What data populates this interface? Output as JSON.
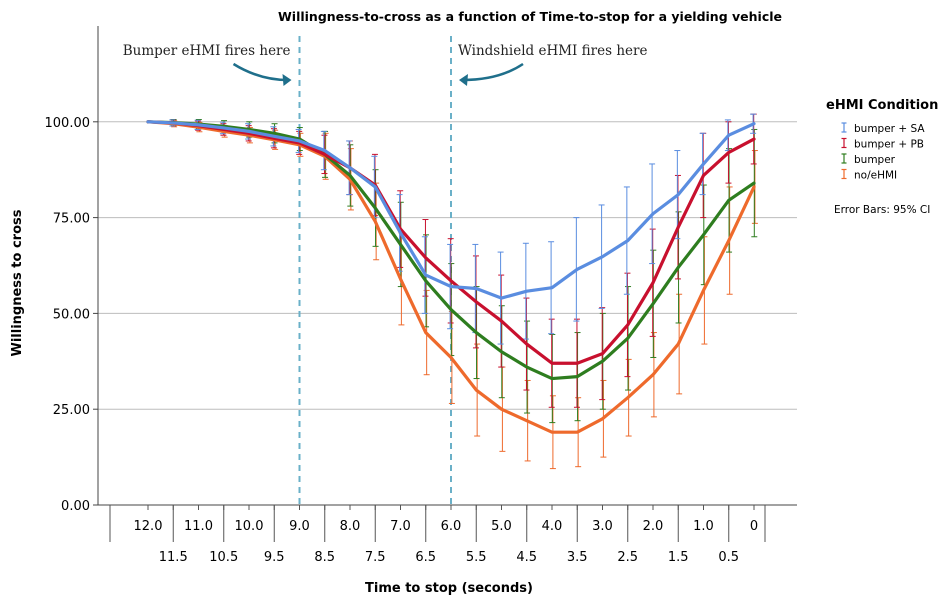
{
  "chart_data": {
    "type": "line",
    "title": "Willingness-to-cross as a function of Time-to-stop for a yielding vehicle",
    "xlabel": "Time to stop (seconds)",
    "ylabel": "Willingness to cross",
    "x_categories": [
      "12.0",
      "11.5",
      "11.0",
      "10.5",
      "10.0",
      "9.5",
      "9.0",
      "8.5",
      "8.0",
      "7.5",
      "7.0",
      "6.5",
      "6.0",
      "5.5",
      "5.0",
      "4.5",
      "4.0",
      "3.5",
      "3.0",
      "2.5",
      "2.0",
      "1.5",
      "1.0",
      "0.5",
      "0"
    ],
    "x_tick_labels_upper": [
      "12.0",
      "11.0",
      "10.0",
      "9.0",
      "8.0",
      "7.0",
      "6.0",
      "5.0",
      "4.0",
      "3.0",
      "2.0",
      "1.0",
      "0"
    ],
    "x_tick_labels_lower": [
      "11.5",
      "10.5",
      "9.5",
      "8.5",
      "7.5",
      "6.5",
      "5.5",
      "4.5",
      "3.5",
      "2.5",
      "1.5",
      "0.5"
    ],
    "yticks": [
      "0.00",
      "25.00",
      "50.00",
      "75.00",
      "100.00"
    ],
    "ytick_values": [
      0,
      25,
      50,
      75,
      100
    ],
    "ylim": [
      0,
      125
    ],
    "grid": "horizontal",
    "legend_title": "eHMI Condition",
    "legend_note": "Error Bars: 95% CI",
    "legend_position": "right",
    "series": [
      {
        "name": "bumper + SA",
        "color": "#5a8de0",
        "values": [
          100,
          99.7,
          99.2,
          98.4,
          97.5,
          96.2,
          95.0,
          92.5,
          88.0,
          83.0,
          71.0,
          60.0,
          57.0,
          56.5,
          54.0,
          55.8,
          56.7,
          61.5,
          64.8,
          69.0,
          76.0,
          81.0,
          89.0,
          96.5,
          99.5
        ],
        "ci": [
          0,
          0.8,
          1.2,
          1.5,
          2.0,
          2.5,
          3.0,
          5.0,
          7.0,
          8.0,
          10.0,
          10.0,
          11.0,
          11.5,
          12.0,
          12.5,
          12.0,
          13.5,
          13.5,
          14.0,
          13.0,
          11.5,
          8.0,
          4.0,
          2.5
        ]
      },
      {
        "name": "bumper + PB",
        "color": "#c8102e",
        "values": [
          100,
          99.7,
          99.0,
          98.0,
          97.0,
          95.7,
          94.5,
          91.5,
          88.0,
          83.5,
          72.0,
          64.5,
          58.5,
          53.0,
          48.0,
          42.0,
          37.0,
          37.0,
          39.5,
          47.0,
          58.0,
          72.5,
          86.0,
          92.0,
          95.5
        ],
        "ci": [
          0,
          0.8,
          1.2,
          1.5,
          2.0,
          2.5,
          3.0,
          5.0,
          7.0,
          8.0,
          10.0,
          10.0,
          11.0,
          12.0,
          12.0,
          12.0,
          11.5,
          11.5,
          12.0,
          13.5,
          14.0,
          13.5,
          11.0,
          8.0,
          6.5
        ]
      },
      {
        "name": "bumper",
        "color": "#2e7d1f",
        "values": [
          100,
          99.8,
          99.4,
          98.8,
          98.0,
          97.0,
          95.5,
          91.5,
          86.0,
          77.5,
          68.0,
          58.5,
          51.0,
          45.0,
          40.0,
          36.0,
          33.0,
          33.5,
          37.5,
          43.5,
          52.5,
          62.0,
          70.5,
          79.5,
          84.0
        ],
        "ci": [
          0,
          0.8,
          1.2,
          1.5,
          2.0,
          2.5,
          3.0,
          6.0,
          8.0,
          10.0,
          11.0,
          12.0,
          12.0,
          12.0,
          12.0,
          12.0,
          11.5,
          11.5,
          12.5,
          13.5,
          14.0,
          14.5,
          13.0,
          13.5,
          14.0
        ]
      },
      {
        "name": "no/eHMI",
        "color": "#ee6a2c",
        "values": [
          100,
          99.5,
          98.6,
          97.5,
          96.5,
          95.3,
          94.0,
          91.0,
          85.0,
          74.0,
          59.0,
          45.0,
          38.5,
          30.0,
          25.0,
          22.0,
          19.0,
          19.0,
          22.5,
          28.0,
          34.0,
          42.0,
          56.0,
          69.0,
          83.0
        ],
        "ci": [
          0,
          0.8,
          1.2,
          1.5,
          2.0,
          2.5,
          3.0,
          6.0,
          8.0,
          10.0,
          12.0,
          11.0,
          12.0,
          12.0,
          11.0,
          10.5,
          9.5,
          9.0,
          10.0,
          10.0,
          11.0,
          13.0,
          14.0,
          14.0,
          9.5
        ]
      }
    ],
    "annotations": [
      {
        "text": "Bumper eHMI fires here",
        "at_x": "9.0",
        "color": "#1f6f8b"
      },
      {
        "text": "Windshield eHMI fires here",
        "at_x": "6.0",
        "color": "#1f6f8b"
      }
    ]
  }
}
